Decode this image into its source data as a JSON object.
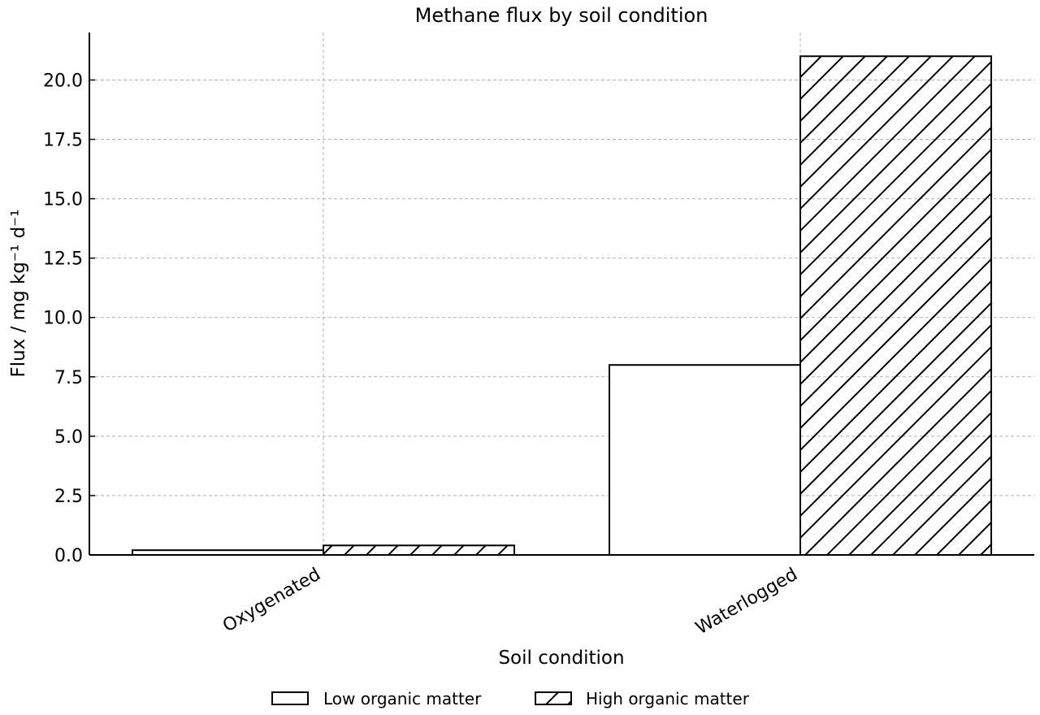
{
  "chart_data": {
    "type": "bar",
    "title": "Methane flux by soil condition",
    "xlabel": "Soil condition",
    "ylabel": "Flux / mg kg⁻¹ d⁻¹",
    "categories": [
      "Oxygenated",
      "Waterlogged"
    ],
    "series": [
      {
        "name": "Low organic matter",
        "values": [
          0.2,
          8.0
        ],
        "pattern": "none"
      },
      {
        "name": "High organic matter",
        "values": [
          0.4,
          21.0
        ],
        "pattern": "diagonal-hatch"
      }
    ],
    "ylim": [
      0,
      22
    ],
    "yticks": [
      0.0,
      2.5,
      5.0,
      7.5,
      10.0,
      12.5,
      15.0,
      17.5,
      20.0
    ],
    "ytick_labels": [
      "0.0",
      "2.5",
      "5.0",
      "7.5",
      "10.0",
      "12.5",
      "15.0",
      "17.5",
      "20.0"
    ],
    "grid": true,
    "legend_position": "bottom-center",
    "colors": {
      "bar_fill": "#ffffff",
      "bar_edge": "#000000",
      "grid": "#b0b0b0"
    }
  }
}
